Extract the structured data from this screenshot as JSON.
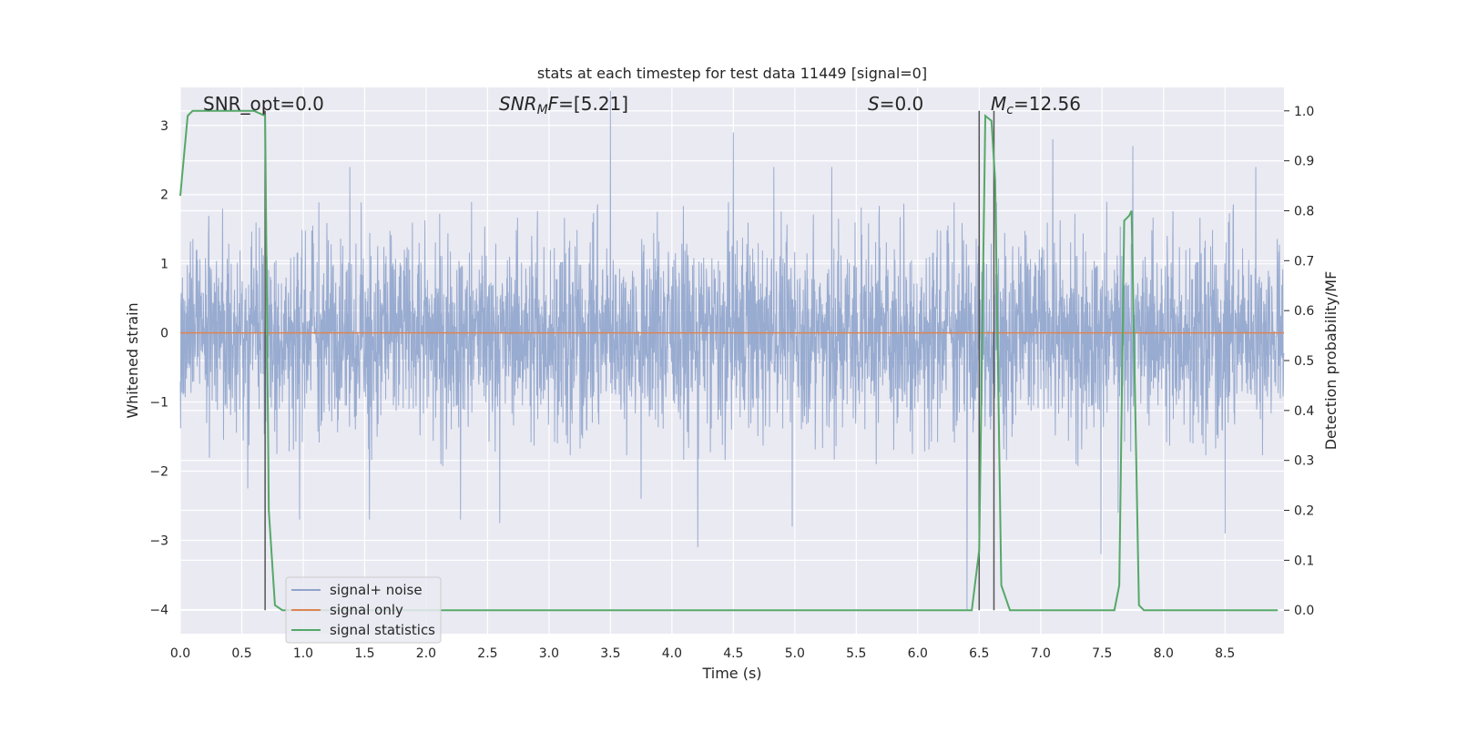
{
  "chart_data": {
    "type": "line",
    "title": "stats at each timestep for test data 11449 [signal=0]",
    "xlabel": "Time (s)",
    "ylabel": "Whitened strain",
    "y2label": "Detection probability/MF",
    "xlim": [
      0.0,
      8.98
    ],
    "ylim": [
      -4.35,
      3.55
    ],
    "y2lim": [
      -0.047,
      1.047
    ],
    "x_ticks": [
      0.0,
      0.5,
      1.0,
      1.5,
      2.0,
      2.5,
      3.0,
      3.5,
      4.0,
      4.5,
      5.0,
      5.5,
      6.0,
      6.5,
      7.0,
      7.5,
      8.0,
      8.5
    ],
    "x_tick_labels": [
      "0.0",
      "0.5",
      "1.0",
      "1.5",
      "2.0",
      "2.5",
      "3.0",
      "3.5",
      "4.0",
      "4.5",
      "5.0",
      "5.5",
      "6.0",
      "6.5",
      "7.0",
      "7.5",
      "8.0",
      "8.5"
    ],
    "y_ticks": [
      -4,
      -3,
      -2,
      -1,
      0,
      1,
      2,
      3
    ],
    "y_tick_labels": [
      "−4",
      "−3",
      "−2",
      "−1",
      "0",
      "1",
      "2",
      "3"
    ],
    "y2_ticks": [
      0.0,
      0.1,
      0.2,
      0.3,
      0.4,
      0.5,
      0.6,
      0.7,
      0.8,
      0.9,
      1.0
    ],
    "y2_tick_labels": [
      "0.0",
      "0.1",
      "0.2",
      "0.3",
      "0.4",
      "0.5",
      "0.6",
      "0.7",
      "0.8",
      "0.9",
      "1.0"
    ],
    "grid": true,
    "legend_position": "bottom-left",
    "series": [
      {
        "name": "signal+ noise",
        "color": "#8fa4cc",
        "axis": "left",
        "kind": "noise",
        "x_range": [
          0.0,
          8.98
        ],
        "envelope_typical": [
          -1.6,
          1.9
        ],
        "extremes": [
          [
            0.55,
            -2.25
          ],
          [
            0.97,
            -2.7
          ],
          [
            1.38,
            2.4
          ],
          [
            1.54,
            -2.7
          ],
          [
            2.28,
            -2.7
          ],
          [
            2.6,
            -2.75
          ],
          [
            3.5,
            3.5
          ],
          [
            3.75,
            -2.4
          ],
          [
            4.21,
            -3.1
          ],
          [
            4.5,
            2.9
          ],
          [
            4.83,
            2.4
          ],
          [
            4.98,
            -2.8
          ],
          [
            5.3,
            2.4
          ],
          [
            6.4,
            -4.0
          ],
          [
            7.1,
            2.8
          ],
          [
            7.49,
            -3.2
          ],
          [
            7.63,
            -2.6
          ],
          [
            7.75,
            2.7
          ],
          [
            8.5,
            -2.9
          ],
          [
            8.75,
            2.4
          ]
        ]
      },
      {
        "name": "signal only",
        "color": "#dd8452",
        "axis": "left",
        "x": [
          0.0,
          8.98
        ],
        "y": [
          0.0,
          0.0
        ]
      },
      {
        "name": "signal statistics",
        "color": "#55a868",
        "axis": "right",
        "x": [
          0.0,
          0.06,
          0.1,
          0.3,
          0.6,
          0.69,
          0.72,
          0.77,
          0.83,
          0.9,
          2.0,
          4.0,
          6.0,
          6.4,
          6.44,
          6.5,
          6.55,
          6.6,
          6.63,
          6.68,
          6.75,
          7.0,
          7.5,
          7.6,
          7.64,
          7.68,
          7.72,
          7.74,
          7.8,
          7.84,
          8.0,
          8.5,
          8.93
        ],
        "y": [
          0.83,
          0.99,
          1.0,
          1.0,
          1.0,
          0.99,
          0.2,
          0.01,
          0.0,
          0.0,
          0.0,
          0.0,
          0.0,
          0.0,
          0.0,
          0.12,
          0.99,
          0.98,
          0.86,
          0.05,
          0.0,
          0.0,
          0.0,
          0.0,
          0.05,
          0.78,
          0.79,
          0.8,
          0.01,
          0.0,
          0.0,
          0.0,
          0.0
        ]
      }
    ],
    "vlines": [
      {
        "x": 0.69,
        "color": "#555555"
      },
      {
        "x": 6.5,
        "color": "#555555"
      },
      {
        "x": 6.62,
        "color": "#555555"
      }
    ],
    "annotations": [
      {
        "text": "SNR_opt=0.0",
        "x": 0.2
      },
      {
        "text": "SNR_MF=[5.21]",
        "x": 2.6
      },
      {
        "text": "S=0.0",
        "x": 5.6
      },
      {
        "text": "M_c=12.56",
        "x": 6.6
      }
    ]
  }
}
